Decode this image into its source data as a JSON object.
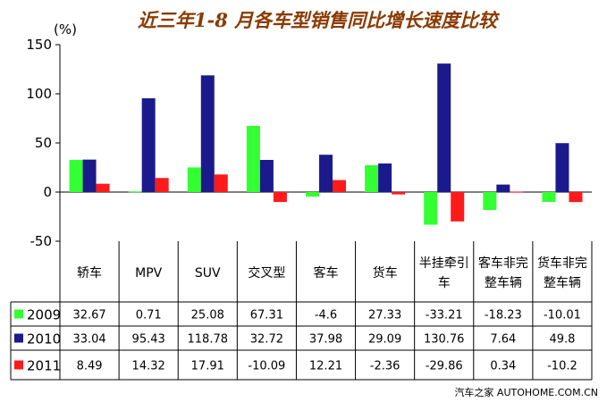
{
  "chart_data": {
    "type": "bar",
    "title": "近三年1-8 月各车型销售同比增长速度比较",
    "ylabel": "(%)",
    "ylim": [
      -50,
      150
    ],
    "yticks": [
      -50,
      0,
      50,
      100,
      150
    ],
    "categories": [
      [
        "轿车"
      ],
      [
        "MPV"
      ],
      [
        "SUV"
      ],
      [
        "交叉型"
      ],
      [
        "客车"
      ],
      [
        "货车"
      ],
      [
        "半挂牵引",
        "车"
      ],
      [
        "客车非完",
        "整车辆"
      ],
      [
        "货车非完",
        "整车辆"
      ]
    ],
    "series": [
      {
        "name": "2009",
        "color": "#33ff33",
        "values": [
          32.67,
          0.71,
          25.08,
          67.31,
          -4.6,
          27.33,
          -33.21,
          -18.23,
          -10.01
        ],
        "labels": [
          "32.67",
          "0.71",
          "25.08",
          "67.31",
          "-4.6",
          "27.33",
          "-33.21",
          "-18.23",
          "-10.01"
        ]
      },
      {
        "name": "2010",
        "color": "#1a1a8c",
        "values": [
          33.04,
          95.43,
          118.78,
          32.72,
          37.98,
          29.09,
          130.76,
          7.64,
          49.8
        ],
        "labels": [
          "33.04",
          "95.43",
          "118.78",
          "32.72",
          "37.98",
          "29.09",
          "130.76",
          "7.64",
          "49.8"
        ]
      },
      {
        "name": "2011",
        "color": "#ff1a1a",
        "values": [
          8.49,
          14.32,
          17.91,
          -10.09,
          12.21,
          -2.36,
          -29.86,
          0.34,
          -10.2
        ],
        "labels": [
          "8.49",
          "14.32",
          "17.91",
          "-10.09",
          "12.21",
          "-2.36",
          "-29.86",
          "0.34",
          "-10.2"
        ]
      }
    ],
    "grid": false,
    "legend": "table-left"
  },
  "footer": "汽车之家 AUTOHOME.COM.CN"
}
